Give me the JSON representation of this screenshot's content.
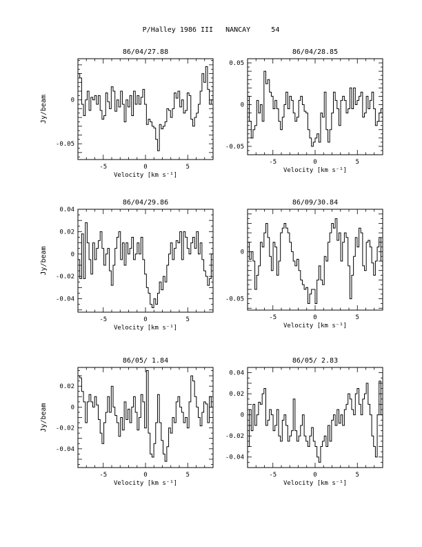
{
  "page": {
    "title": "P/Halley 1986 III   NANCAY     54"
  },
  "chart_data": [
    {
      "type": "line",
      "title": "86/04/27.88",
      "xlabel": "Velocity [km s⁻¹]",
      "ylabel": "Jy/beam",
      "xlim": [
        -8,
        8
      ],
      "ylim": [
        -0.068,
        0.047
      ],
      "xticks": [
        -5,
        0,
        5
      ],
      "yticks": [
        0,
        -0.05
      ],
      "ytick_labels": [
        "0",
        "-0.05"
      ],
      "series": [
        {
          "values": [
            0.03,
            0.025,
            -0.005,
            -0.018,
            0.0,
            0.01,
            -0.012,
            0.003,
            0.0,
            0.005,
            -0.005,
            0.005,
            -0.012,
            -0.022,
            -0.018,
            0.008,
            -0.002,
            -0.01,
            0.015,
            0.01,
            -0.013,
            0.0,
            -0.008,
            0.01,
            -0.005,
            -0.025,
            0.0,
            -0.008,
            0.005,
            -0.018,
            0.01,
            -0.005,
            0.005,
            -0.005,
            0.003,
            0.012,
            -0.005,
            -0.028,
            -0.022,
            -0.025,
            -0.03,
            -0.032,
            -0.045,
            -0.058,
            -0.028,
            -0.033,
            -0.03,
            -0.025,
            -0.01,
            -0.012,
            -0.02,
            -0.01,
            0.008,
            0.002,
            0.01,
            -0.008,
            0.0,
            -0.015,
            -0.012,
            0.008,
            0.005,
            -0.022,
            -0.03,
            -0.02,
            -0.015,
            -0.005,
            0.01,
            0.03,
            0.02,
            0.038,
            0.012,
            -0.005,
            0.0
          ]
        }
      ]
    },
    {
      "type": "line",
      "title": "86/04/28.85",
      "xlabel": "Velocity [km s⁻¹]",
      "ylabel": "",
      "xlim": [
        -8,
        8
      ],
      "ylim": [
        -0.06,
        0.055
      ],
      "xticks": [
        -5,
        0,
        5
      ],
      "yticks": [
        0.05,
        0,
        -0.05
      ],
      "ytick_labels": [
        "0.05",
        "0",
        "-0.05"
      ],
      "series": [
        {
          "values": [
            0.01,
            -0.02,
            -0.04,
            -0.03,
            -0.025,
            0.005,
            -0.01,
            0.0,
            -0.02,
            0.04,
            0.025,
            0.03,
            0.015,
            0.01,
            -0.005,
            0.005,
            -0.005,
            -0.02,
            -0.03,
            -0.015,
            0.0,
            0.015,
            -0.005,
            0.01,
            0.005,
            -0.01,
            -0.02,
            -0.015,
            0.005,
            0.01,
            0.0,
            -0.008,
            -0.01,
            -0.03,
            -0.04,
            -0.05,
            -0.045,
            -0.04,
            -0.035,
            -0.045,
            -0.01,
            -0.015,
            0.015,
            -0.03,
            -0.045,
            -0.03,
            -0.01,
            0.015,
            0.005,
            -0.005,
            -0.025,
            0.005,
            0.01,
            0.005,
            -0.01,
            -0.005,
            0.02,
            -0.005,
            0.02,
            0.0,
            0.005,
            0.01,
            0.015,
            -0.015,
            -0.01,
            0.01,
            -0.005,
            0.005,
            0.015,
            -0.005,
            -0.025,
            -0.02,
            -0.01,
            -0.005
          ]
        }
      ]
    },
    {
      "type": "line",
      "title": "86/04/29.86",
      "xlabel": "Velocity [km s⁻¹]",
      "ylabel": "Jy/beam",
      "xlim": [
        -8,
        8
      ],
      "ylim": [
        -0.052,
        0.04
      ],
      "xticks": [
        -5,
        0,
        5
      ],
      "yticks": [
        0.04,
        0.02,
        0,
        -0.02,
        -0.04
      ],
      "ytick_labels": [
        "0.04",
        "0.02",
        "0",
        "-0.02",
        "-0.04"
      ],
      "series": [
        {
          "values": [
            -0.005,
            -0.022,
            0.018,
            -0.022,
            0.028,
            0.01,
            -0.005,
            -0.018,
            0.01,
            -0.005,
            0.005,
            0.012,
            0.02,
            0.005,
            -0.01,
            0.0,
            0.005,
            -0.015,
            -0.028,
            -0.01,
            0.005,
            0.015,
            0.02,
            -0.005,
            0.01,
            -0.01,
            0.01,
            0.0,
            0.005,
            0.015,
            -0.005,
            0.0,
            0.01,
            0.0,
            0.015,
            -0.005,
            -0.018,
            -0.03,
            -0.035,
            -0.045,
            -0.048,
            -0.04,
            -0.045,
            -0.035,
            -0.025,
            -0.032,
            -0.02,
            -0.025,
            -0.01,
            0.0,
            0.01,
            -0.005,
            0.005,
            0.012,
            0.01,
            0.02,
            -0.005,
            0.02,
            0.015,
            0.005,
            0.0,
            0.01,
            0.015,
            0.005,
            0.02,
            0.0,
            0.01,
            -0.005,
            -0.015,
            -0.02,
            -0.028,
            -0.022,
            0.0
          ]
        }
      ]
    },
    {
      "type": "line",
      "title": "86/09/30.84",
      "xlabel": "Velocity [km s⁻¹]",
      "ylabel": "",
      "xlim": [
        -8,
        8
      ],
      "ylim": [
        -0.062,
        0.045
      ],
      "xticks": [
        -5,
        0,
        5
      ],
      "yticks": [
        0,
        -0.05
      ],
      "ytick_labels": [
        "0",
        "-0.05"
      ],
      "series": [
        {
          "values": [
            0.01,
            -0.008,
            0.0,
            -0.01,
            -0.04,
            -0.025,
            -0.015,
            0.01,
            0.005,
            0.02,
            0.03,
            0.015,
            -0.005,
            -0.02,
            0.01,
            0.005,
            -0.025,
            -0.01,
            0.02,
            0.025,
            0.03,
            0.025,
            0.02,
            0.01,
            0.0,
            -0.01,
            -0.015,
            -0.008,
            -0.02,
            -0.03,
            -0.035,
            -0.04,
            -0.038,
            -0.055,
            -0.045,
            -0.04,
            -0.04,
            -0.055,
            -0.03,
            -0.015,
            -0.03,
            -0.035,
            -0.005,
            -0.01,
            0.01,
            0.02,
            0.03,
            0.025,
            0.035,
            0.012,
            0.02,
            -0.01,
            0.01,
            0.02,
            0.015,
            -0.015,
            -0.05,
            -0.025,
            -0.005,
            0.015,
            0.005,
            0.025,
            0.02,
            -0.015,
            -0.02,
            0.01,
            0.012,
            0.005,
            -0.012,
            -0.025,
            -0.01,
            0.005,
            0.015,
            -0.01
          ]
        }
      ]
    },
    {
      "type": "line",
      "title": "86/05/ 1.84",
      "xlabel": "Velocity [km s⁻¹]",
      "ylabel": "Jy/beam",
      "xlim": [
        -8,
        8
      ],
      "ylim": [
        -0.058,
        0.038
      ],
      "xticks": [
        -5,
        0,
        5
      ],
      "yticks": [
        0.02,
        0,
        -0.02,
        -0.04
      ],
      "ytick_labels": [
        "0.02",
        "0",
        "-0.02",
        "-0.04"
      ],
      "series": [
        {
          "values": [
            0.03,
            0.028,
            0.015,
            0.005,
            -0.015,
            0.005,
            0.012,
            0.005,
            0.0,
            0.01,
            0.002,
            -0.012,
            -0.025,
            -0.035,
            -0.015,
            -0.005,
            0.01,
            -0.005,
            0.02,
            0.0,
            -0.008,
            -0.015,
            -0.028,
            -0.01,
            -0.022,
            0.005,
            -0.012,
            -0.002,
            -0.015,
            0.0,
            0.01,
            -0.005,
            -0.022,
            -0.01,
            0.012,
            0.005,
            -0.02,
            0.035,
            -0.025,
            -0.045,
            -0.048,
            -0.035,
            -0.015,
            0.012,
            -0.015,
            -0.032,
            -0.045,
            -0.052,
            -0.038,
            -0.02,
            -0.025,
            -0.01,
            -0.015,
            0.005,
            0.01,
            0.0,
            -0.005,
            -0.015,
            -0.01,
            -0.02,
            0.005,
            0.03,
            0.025,
            0.01,
            0.0,
            -0.01,
            -0.018,
            -0.005,
            0.005,
            0.003,
            -0.015,
            0.01,
            0.0
          ]
        }
      ]
    },
    {
      "type": "line",
      "title": "86/05/ 2.83",
      "xlabel": "Velocity [km s⁻¹]",
      "ylabel": "",
      "xlim": [
        -8,
        8
      ],
      "ylim": [
        -0.05,
        0.045
      ],
      "xticks": [
        -5,
        0,
        5
      ],
      "yticks": [
        0.04,
        0.02,
        0,
        -0.02,
        -0.04
      ],
      "ytick_labels": [
        "0.04",
        "0.02",
        "0",
        "-0.02",
        "-0.04"
      ],
      "series": [
        {
          "values": [
            -0.03,
            0.005,
            -0.015,
            0.01,
            -0.01,
            0.0,
            0.012,
            0.01,
            0.02,
            0.025,
            -0.01,
            -0.005,
            0.005,
            0.0,
            -0.015,
            -0.01,
            0.005,
            -0.02,
            -0.025,
            -0.005,
            0.0,
            -0.01,
            -0.025,
            -0.02,
            -0.015,
            0.015,
            -0.015,
            -0.025,
            -0.02,
            -0.01,
            0.0,
            -0.02,
            -0.025,
            -0.03,
            -0.02,
            -0.012,
            -0.025,
            -0.03,
            -0.04,
            -0.045,
            -0.03,
            -0.025,
            -0.02,
            -0.03,
            -0.01,
            -0.025,
            -0.005,
            0.0,
            -0.01,
            0.005,
            -0.008,
            0.0,
            -0.01,
            0.005,
            0.01,
            0.02,
            0.015,
            0.005,
            0.0,
            0.02,
            0.025,
            0.01,
            0.0,
            0.015,
            0.02,
            0.03,
            0.01,
            0.0,
            -0.02,
            -0.03,
            -0.04,
            0.0,
            0.032,
            0.0
          ]
        }
      ]
    }
  ]
}
